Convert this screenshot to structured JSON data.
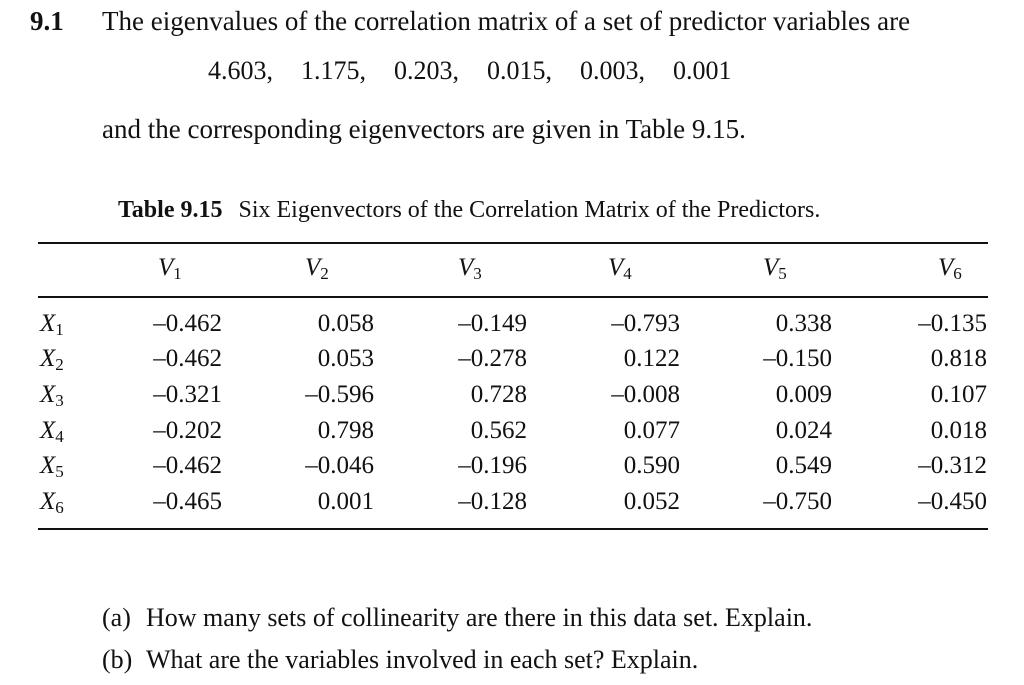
{
  "problem": {
    "number": "9.1",
    "intro": "The eigenvalues of the correlation matrix of a set of predictor variables are",
    "eigenvalues": [
      "4.603,",
      "1.175,",
      "0.203,",
      "0.015,",
      "0.003,",
      "0.001"
    ],
    "after": "and the corresponding eigenvectors are given in Table 9.15."
  },
  "table": {
    "caption_label": "Table 9.15",
    "caption_text": "Six Eigenvectors of the Correlation Matrix of the Predictors.",
    "columns": [
      {
        "base": "V",
        "sub": "1"
      },
      {
        "base": "V",
        "sub": "2"
      },
      {
        "base": "V",
        "sub": "3"
      },
      {
        "base": "V",
        "sub": "4"
      },
      {
        "base": "V",
        "sub": "5"
      },
      {
        "base": "V",
        "sub": "6"
      }
    ],
    "rows": [
      {
        "base": "X",
        "sub": "1",
        "values": [
          "–0.462",
          "0.058",
          "–0.149",
          "–0.793",
          "0.338",
          "–0.135"
        ]
      },
      {
        "base": "X",
        "sub": "2",
        "values": [
          "–0.462",
          "0.053",
          "–0.278",
          "0.122",
          "–0.150",
          "0.818"
        ]
      },
      {
        "base": "X",
        "sub": "3",
        "values": [
          "–0.321",
          "–0.596",
          "0.728",
          "–0.008",
          "0.009",
          "0.107"
        ]
      },
      {
        "base": "X",
        "sub": "4",
        "values": [
          "–0.202",
          "0.798",
          "0.562",
          "0.077",
          "0.024",
          "0.018"
        ]
      },
      {
        "base": "X",
        "sub": "5",
        "values": [
          "–0.462",
          "–0.046",
          "–0.196",
          "0.590",
          "0.549",
          "–0.312"
        ]
      },
      {
        "base": "X",
        "sub": "6",
        "values": [
          "–0.465",
          "0.001",
          "–0.128",
          "0.052",
          "–0.750",
          "–0.450"
        ]
      }
    ]
  },
  "questions": [
    {
      "tag": "(a)",
      "text": "How many sets of collinearity are there in this data set. Explain."
    },
    {
      "tag": "(b)",
      "text": "What are the variables involved in each set? Explain."
    }
  ]
}
